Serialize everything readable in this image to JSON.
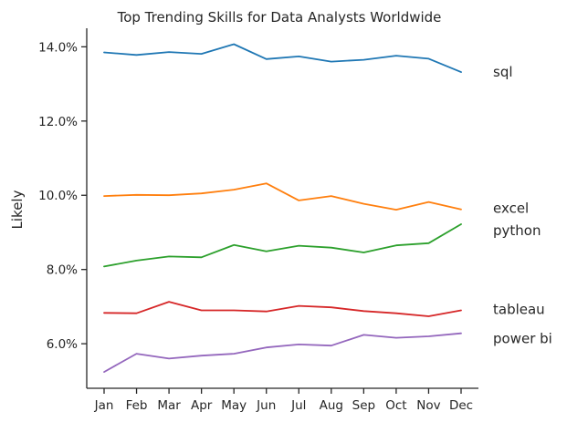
{
  "chart_data": {
    "type": "line",
    "title": "Top Trending Skills for Data Analysts Worldwide",
    "xlabel": "",
    "ylabel": "Likely",
    "categories": [
      "Jan",
      "Feb",
      "Mar",
      "Apr",
      "May",
      "Jun",
      "Jul",
      "Aug",
      "Sep",
      "Oct",
      "Nov",
      "Dec"
    ],
    "y_ticks": [
      6.0,
      8.0,
      10.0,
      12.0,
      14.0
    ],
    "y_tick_labels": [
      "6.0%",
      "8.0%",
      "10.0%",
      "12.0%",
      "14.0%"
    ],
    "ylim": [
      4.8,
      14.5
    ],
    "grid": false,
    "legend": "none",
    "series": [
      {
        "name": "sql",
        "color": "#1f77b4",
        "values": [
          13.85,
          13.78,
          13.86,
          13.81,
          14.07,
          13.67,
          13.74,
          13.6,
          13.65,
          13.76,
          13.68,
          13.32
        ]
      },
      {
        "name": "excel",
        "color": "#ff7f0e",
        "values": [
          9.98,
          10.01,
          10.0,
          10.05,
          10.15,
          10.32,
          9.86,
          9.98,
          9.77,
          9.61,
          9.82,
          9.62
        ]
      },
      {
        "name": "python",
        "color": "#2ca02c",
        "values": [
          8.08,
          8.24,
          8.35,
          8.33,
          8.66,
          8.49,
          8.64,
          8.59,
          8.46,
          8.65,
          8.71,
          9.22
        ]
      },
      {
        "name": "tableau",
        "color": "#d62728",
        "values": [
          6.83,
          6.82,
          7.13,
          6.9,
          6.9,
          6.87,
          7.02,
          6.98,
          6.88,
          6.82,
          6.74,
          6.9
        ]
      },
      {
        "name": "power bi",
        "color": "#9467bd",
        "values": [
          5.24,
          5.73,
          5.6,
          5.68,
          5.73,
          5.9,
          5.98,
          5.95,
          6.24,
          6.16,
          6.2,
          6.28
        ]
      }
    ]
  }
}
